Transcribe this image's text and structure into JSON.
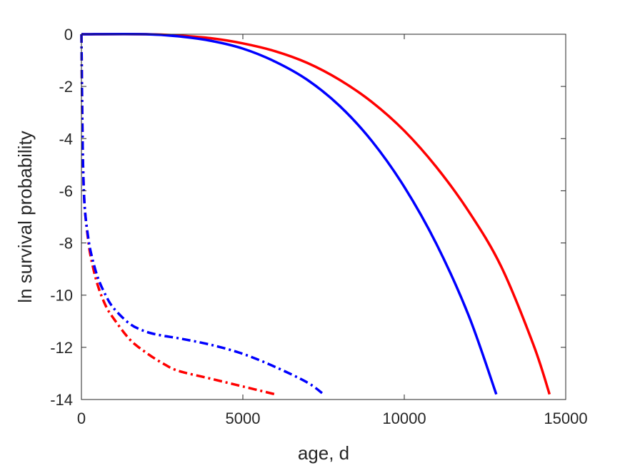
{
  "chart_data": {
    "type": "line",
    "xlabel": "age, d",
    "ylabel": "ln survival probability",
    "xlim": [
      0,
      15000
    ],
    "ylim": [
      -14,
      0
    ],
    "xticks": [
      0,
      5000,
      10000,
      15000
    ],
    "yticks": [
      0,
      -2,
      -4,
      -6,
      -8,
      -10,
      -12,
      -14
    ],
    "xtick_labels": [
      "0",
      "5000",
      "10000",
      "15000"
    ],
    "ytick_labels": [
      "0",
      "-2",
      "-4",
      "-6",
      "-8",
      "-10",
      "-12",
      "-14"
    ],
    "grid": false,
    "series": [
      {
        "color": "#ff0000",
        "style": "solid",
        "x": [
          0,
          2000,
          3000,
          4000,
          5000,
          6000,
          7000,
          8000,
          9000,
          10000,
          11000,
          12000,
          13000,
          14000,
          14500
        ],
        "y": [
          0,
          0,
          -0.05,
          -0.15,
          -0.35,
          -0.65,
          -1.1,
          -1.75,
          -2.6,
          -3.7,
          -5.1,
          -6.8,
          -8.9,
          -11.9,
          -13.8
        ]
      },
      {
        "color": "#0000ff",
        "style": "solid",
        "x": [
          0,
          2000,
          3000,
          4000,
          5000,
          6000,
          7000,
          8000,
          9000,
          10000,
          11000,
          12000,
          12850
        ],
        "y": [
          0,
          0,
          -0.08,
          -0.25,
          -0.55,
          -1.05,
          -1.75,
          -2.75,
          -4.1,
          -5.85,
          -8.05,
          -10.8,
          -13.8
        ]
      },
      {
        "color": "#ff0000",
        "style": "dashdot",
        "x": [
          0,
          10,
          25,
          50,
          100,
          200,
          300,
          500,
          750,
          1000,
          1500,
          2000,
          2500,
          3000,
          4000,
          5000,
          6000
        ],
        "y": [
          0,
          -1.2,
          -3,
          -5,
          -6.6,
          -7.8,
          -8.6,
          -9.6,
          -10.4,
          -10.9,
          -11.7,
          -12.2,
          -12.6,
          -12.9,
          -13.2,
          -13.5,
          -13.8
        ]
      },
      {
        "color": "#0000ff",
        "style": "dashdot",
        "x": [
          0,
          10,
          25,
          50,
          100,
          200,
          300,
          500,
          750,
          1000,
          1500,
          2000,
          2500,
          3000,
          4000,
          5000,
          6000,
          7000,
          7500
        ],
        "y": [
          0,
          -1.2,
          -3,
          -5,
          -6.6,
          -7.7,
          -8.4,
          -9.3,
          -10.0,
          -10.5,
          -11.1,
          -11.4,
          -11.55,
          -11.65,
          -11.9,
          -12.25,
          -12.75,
          -13.35,
          -13.8
        ]
      }
    ]
  }
}
